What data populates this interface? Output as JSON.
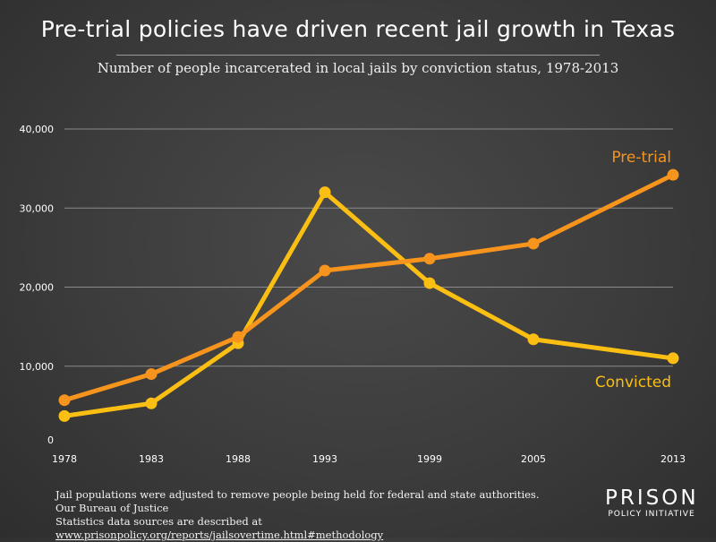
{
  "header": {
    "title": "Pre-trial policies have driven recent jail growth in Texas",
    "subtitle": "Number of people incarcerated in local jails by conviction status, 1978-2013"
  },
  "footer": {
    "note_line1": "Jail populations were adjusted to remove people being held for federal and state authorities. Our Bureau of Justice",
    "note_line2_prefix": "Statistics data sources are described at ",
    "note_link": "www.prisonpolicy.org/reports/jailsovertime.html#methodology",
    "logo_top": "PRISON",
    "logo_bottom": "POLICY INITIATIVE"
  },
  "chart_data": {
    "type": "line",
    "title": "Pre-trial policies have driven recent jail growth in Texas",
    "subtitle": "Number of people incarcerated in local jails by conviction status, 1978-2013",
    "xlabel": "",
    "ylabel": "",
    "categories": [
      "1978",
      "1983",
      "1988",
      "1993",
      "1999",
      "2005",
      "2013"
    ],
    "ylim": [
      0,
      40000
    ],
    "yticks": [
      0,
      10000,
      20000,
      30000,
      40000
    ],
    "ytick_labels": [
      "0",
      "10,000",
      "20,000",
      "30,000",
      "40,000"
    ],
    "grid": true,
    "series": [
      {
        "name": "Pre-trial",
        "color": "#f7941d",
        "values": [
          5700,
          9000,
          13700,
          22100,
          23600,
          25500,
          34200
        ]
      },
      {
        "name": "Convicted",
        "color": "#fbbf14",
        "values": [
          3700,
          5300,
          12900,
          32000,
          20500,
          13400,
          11000
        ]
      }
    ]
  }
}
